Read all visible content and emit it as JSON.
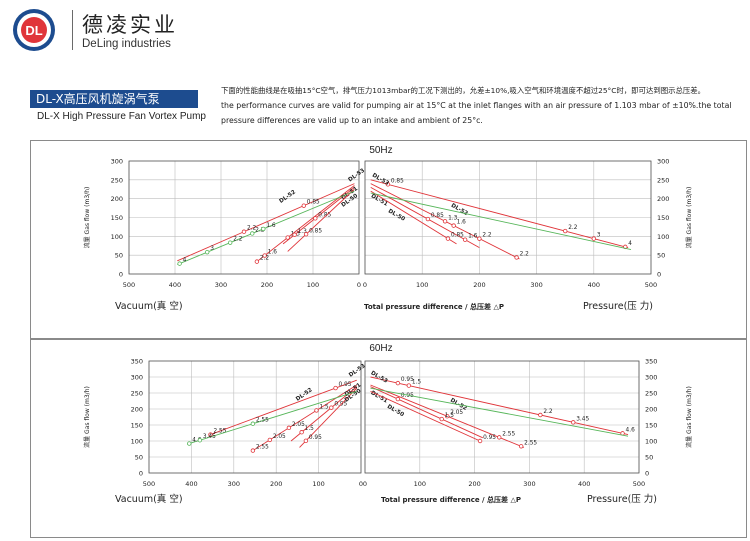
{
  "header": {
    "logo_text": "DL",
    "brand_cn": "德凌实业",
    "brand_en": "DeLing industries",
    "product_cn": "DL-X高压风机旋涡气泵",
    "product_en": "DL-X High Pressure Fan Vortex Pump",
    "description_lines": [
      "下面的性能曲线是在吸抽15°C空气，排气压力1013mbar的工况下测出的，允差±10%,吸入空气和环境温度不超过25°C时，即可达到图示总压差。",
      "the performance curves are valid for pumping air at 15°C at the inlet flanges with an air pressure of 1.103 mbar of ±10%.the total",
      "pressure differences are valid up to an intake and ambient of 25°c."
    ]
  },
  "colors": {
    "red": "#e0353a",
    "green": "#57b65a",
    "banner": "#1d4c8f",
    "grid": "#bdbdbd"
  },
  "chart_data": [
    {
      "type": "line",
      "title": "50Hz",
      "y_axis_label": "流量 Gas flow (m3/h)",
      "y_ticks": [
        0,
        50,
        100,
        150,
        200,
        250,
        300
      ],
      "ylim": [
        0,
        300
      ],
      "vacuum_ticks": [
        500,
        400,
        300,
        200,
        100,
        0
      ],
      "pressure_ticks": [
        0,
        100,
        200,
        300,
        400,
        500
      ],
      "vacuum_label": "Vacuum(真 空)",
      "pressure_label": "Pressure(压 力)",
      "center_label": "Total pressure difference / 总压差 △P",
      "vacuum_series": [
        {
          "name": "DL-53",
          "color": "red",
          "label_at": [
            20,
            245
          ],
          "points": [
            [
              10,
              240
            ],
            [
              395,
              35
            ]
          ],
          "markers": [
            {
              "x": 120,
              "label": "0.85"
            },
            {
              "x": 250,
              "label": "2.2"
            }
          ]
        },
        {
          "name": "DL-52",
          "color": "red",
          "label_at": [
            170,
            188
          ],
          "points": [
            [
              10,
              235
            ],
            [
              225,
              30
            ]
          ],
          "markers": [
            {
              "x": 155,
              "label": "1.3"
            },
            {
              "x": 205,
              "label": "1.6"
            },
            {
              "x": 222,
              "label": "2.2"
            }
          ]
        },
        {
          "name": "DL-51",
          "color": "red",
          "label_at": [
            35,
            197
          ],
          "points": [
            [
              10,
              230
            ],
            [
              165,
              80
            ]
          ],
          "markers": [
            {
              "x": 95,
              "label": "0.85"
            },
            {
              "x": 140,
              "label": "1.3"
            }
          ]
        },
        {
          "name": "DL-50",
          "color": "red",
          "label_at": [
            35,
            178
          ],
          "points": [
            [
              10,
              225
            ],
            [
              155,
              60
            ]
          ],
          "markers": [
            {
              "x": 115,
              "label": "0.85"
            }
          ]
        },
        {
          "name": "",
          "color": "green",
          "points": [
            [
              10,
              220
            ],
            [
              395,
              25
            ]
          ],
          "markers": [
            {
              "x": 390,
              "label": "4"
            },
            {
              "x": 330,
              "label": "3"
            },
            {
              "x": 280,
              "label": "2.2"
            },
            {
              "x": 232,
              "label": "2.2"
            },
            {
              "x": 208,
              "label": "1.6"
            }
          ]
        }
      ],
      "pressure_series": [
        {
          "name": "DL-53",
          "color": "red",
          "label_at": [
            12,
            260
          ],
          "points": [
            [
              10,
              250
            ],
            [
              460,
              70
            ]
          ],
          "markers": [
            {
              "x": 40,
              "label": "0.85"
            },
            {
              "x": 350,
              "label": "2.2"
            },
            {
              "x": 400,
              "label": "3"
            },
            {
              "x": 455,
              "label": "4"
            }
          ]
        },
        {
          "name": "DL-52",
          "color": "red",
          "label_at": [
            150,
            180
          ],
          "points": [
            [
              10,
              240
            ],
            [
              270,
              40
            ]
          ],
          "markers": [
            {
              "x": 140,
              "label": "1.3"
            },
            {
              "x": 155,
              "label": "1.6"
            },
            {
              "x": 200,
              "label": "2.2"
            },
            {
              "x": 265,
              "label": "2.2"
            }
          ]
        },
        {
          "name": "DL-51",
          "color": "red",
          "label_at": [
            10,
            205
          ],
          "points": [
            [
              10,
              230
            ],
            [
              200,
              70
            ]
          ],
          "markers": [
            {
              "x": 110,
              "label": "0.85"
            },
            {
              "x": 175,
              "label": "1.6"
            }
          ]
        },
        {
          "name": "DL-50",
          "color": "red",
          "label_at": [
            40,
            165
          ],
          "points": [
            [
              10,
              220
            ],
            [
              160,
              80
            ]
          ],
          "markers": [
            {
              "x": 145,
              "label": "0.85"
            }
          ]
        },
        {
          "name": "",
          "color": "green",
          "points": [
            [
              10,
              215
            ],
            [
              465,
              65
            ]
          ],
          "markers": []
        }
      ]
    },
    {
      "type": "line",
      "title": "60Hz",
      "y_axis_label": "流量 Gas flow (m3/h)",
      "y_ticks": [
        0,
        50,
        100,
        150,
        200,
        250,
        300,
        350
      ],
      "ylim": [
        0,
        350
      ],
      "vacuum_ticks": [
        500,
        400,
        300,
        200,
        100,
        0
      ],
      "pressure_ticks": [
        0,
        100,
        200,
        300,
        400,
        500
      ],
      "vacuum_label": "Vacuum(真 空)",
      "pressure_label": "Pressure(压 力)",
      "center_label": "Total pressure difference / 总压差 △P",
      "vacuum_series": [
        {
          "name": "DL-53",
          "color": "red",
          "label_at": [
            25,
            300
          ],
          "points": [
            [
              10,
              290
            ],
            [
              355,
              120
            ]
          ],
          "markers": [
            {
              "x": 60,
              "label": "0.95"
            },
            {
              "x": 355,
              "label": "2.55"
            }
          ]
        },
        {
          "name": "DL-52",
          "color": "red",
          "label_at": [
            150,
            225
          ],
          "points": [
            [
              10,
              275
            ],
            [
              255,
              70
            ]
          ],
          "markers": [
            {
              "x": 105,
              "label": "1.5"
            },
            {
              "x": 170,
              "label": "2.05"
            },
            {
              "x": 215,
              "label": "2.05"
            },
            {
              "x": 255,
              "label": "2.55"
            }
          ]
        },
        {
          "name": "DL-51",
          "color": "red",
          "label_at": [
            35,
            240
          ],
          "points": [
            [
              10,
              270
            ],
            [
              165,
              100
            ]
          ],
          "markers": [
            {
              "x": 70,
              "label": "0.95"
            },
            {
              "x": 140,
              "label": "1.5"
            }
          ]
        },
        {
          "name": "DL-50",
          "color": "red",
          "label_at": [
            35,
            222
          ],
          "points": [
            [
              10,
              265
            ],
            [
              145,
              80
            ]
          ],
          "markers": [
            {
              "x": 130,
              "label": "0.95"
            }
          ]
        },
        {
          "name": "",
          "color": "green",
          "points": [
            [
              10,
              255
            ],
            [
              410,
              90
            ]
          ],
          "markers": [
            {
              "x": 405,
              "label": "4.6"
            },
            {
              "x": 380,
              "label": "3.45"
            },
            {
              "x": 255,
              "label": "2.55"
            }
          ]
        }
      ],
      "pressure_series": [
        {
          "name": "DL-53",
          "color": "red",
          "label_at": [
            10,
            310
          ],
          "points": [
            [
              10,
              300
            ],
            [
              480,
              120
            ]
          ],
          "markers": [
            {
              "x": 60,
              "label": "0.95"
            },
            {
              "x": 80,
              "label": "1.5"
            },
            {
              "x": 320,
              "label": "2.2"
            },
            {
              "x": 380,
              "label": "3.45"
            },
            {
              "x": 470,
              "label": "4.6"
            }
          ]
        },
        {
          "name": "DL-52",
          "color": "red",
          "label_at": [
            155,
            225
          ],
          "points": [
            [
              10,
              275
            ],
            [
              290,
              80
            ]
          ],
          "markers": [
            {
              "x": 150,
              "label": "2.05"
            },
            {
              "x": 245,
              "label": "2.55"
            },
            {
              "x": 285,
              "label": "2.55"
            }
          ]
        },
        {
          "name": "DL-51",
          "color": "red",
          "label_at": [
            10,
            248
          ],
          "points": [
            [
              10,
              270
            ],
            [
              215,
              110
            ]
          ],
          "markers": [
            {
              "x": 60,
              "label": "0.95"
            },
            {
              "x": 140,
              "label": "1.5"
            }
          ]
        },
        {
          "name": "DL-50",
          "color": "red",
          "label_at": [
            40,
            205
          ],
          "points": [
            [
              10,
              255
            ],
            [
              210,
              100
            ]
          ],
          "markers": [
            {
              "x": 210,
              "label": "0.95"
            }
          ]
        },
        {
          "name": "",
          "color": "green",
          "points": [
            [
              10,
              265
            ],
            [
              480,
              115
            ]
          ],
          "markers": []
        }
      ]
    }
  ]
}
